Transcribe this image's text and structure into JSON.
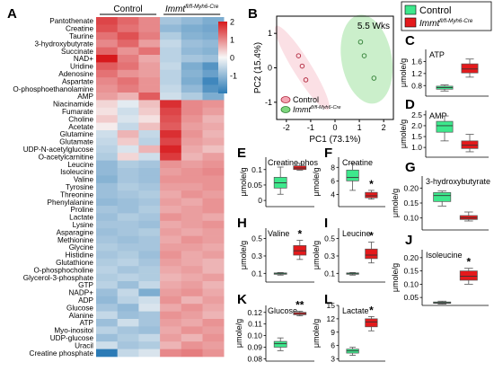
{
  "panel_letters": [
    "A",
    "B",
    "C",
    "D",
    "E",
    "F",
    "G",
    "H",
    "I",
    "J",
    "K",
    "L"
  ],
  "heatmap": {
    "group_control": "Control",
    "group_mutant": "Immt",
    "group_mutant_sup": "fl/fl-Myh6-Cre",
    "colorbar_ticks": [
      "2",
      "1",
      "0",
      "-1"
    ],
    "colors": {
      "high": "#d7191c",
      "mid": "#f7f7f7",
      "low": "#2c7bb6"
    }
  },
  "chart_data": [
    {
      "type": "heatmap",
      "panel": "A",
      "columns": [
        "Control",
        "Control",
        "Control",
        "Immt",
        "Immt",
        "Immt"
      ],
      "rows": [
        "Pantothenate",
        "Creatine",
        "Taurine",
        "3-hydroxybutyrate",
        "Succinate",
        "NAD+",
        "Uridine",
        "Adenosine",
        "Aspartate",
        "O-phosphoethanolamine",
        "AMP",
        "Niacinamide",
        "Fumarate",
        "Choline",
        "Acetate",
        "Glutamine",
        "Glutamate",
        "UDP-N-acetylglucose",
        "O-acetylcarnitine",
        "Leucine",
        "Isoleucine",
        "Valine",
        "Tyrosine",
        "Threonine",
        "Phenylalanine",
        "Proline",
        "Lactate",
        "Lysine",
        "Asparagine",
        "Methionine",
        "Glycine",
        "Histidine",
        "Glutathione",
        "O-phosphocholine",
        "Glycerol-3-phosphate",
        "GTP",
        "NADP+",
        "ADP",
        "Glucose",
        "Alanine",
        "ATP",
        "Myo-inositol",
        "UDP-glucose",
        "Uracil",
        "Creatine phosphate"
      ],
      "values": [
        [
          1.6,
          1.3,
          1.0,
          -0.8,
          -1.0,
          -1.2
        ],
        [
          1.5,
          1.2,
          1.0,
          -1.0,
          -1.2,
          -1.3
        ],
        [
          1.2,
          1.5,
          1.1,
          -0.7,
          -1.1,
          -1.2
        ],
        [
          1.0,
          1.3,
          0.8,
          -0.5,
          -0.9,
          -1.0
        ],
        [
          1.3,
          0.9,
          1.2,
          -0.6,
          -1.0,
          -1.1
        ],
        [
          2.0,
          1.1,
          0.7,
          -0.6,
          -0.8,
          -0.9
        ],
        [
          1.4,
          1.2,
          0.8,
          -0.5,
          -1.2,
          -1.6
        ],
        [
          1.2,
          0.9,
          0.8,
          -0.6,
          -1.1,
          -1.4
        ],
        [
          1.0,
          1.2,
          0.9,
          -0.6,
          -1.2,
          -1.8
        ],
        [
          0.9,
          1.1,
          0.9,
          -0.5,
          -1.0,
          -1.6
        ],
        [
          0.8,
          0.6,
          1.4,
          -0.4,
          -0.7,
          -1.2
        ],
        [
          0.3,
          -0.2,
          0.5,
          1.8,
          1.0,
          0.9
        ],
        [
          0.2,
          -0.4,
          0.4,
          1.6,
          1.0,
          0.8
        ],
        [
          0.4,
          -0.3,
          0.2,
          1.5,
          0.9,
          0.6
        ],
        [
          0.1,
          -0.5,
          0.5,
          1.4,
          0.8,
          0.7
        ],
        [
          -0.4,
          0.6,
          -0.5,
          1.8,
          0.9,
          0.6
        ],
        [
          -0.5,
          0.4,
          -0.6,
          1.6,
          0.8,
          0.7
        ],
        [
          -0.6,
          -0.3,
          0.6,
          1.9,
          0.7,
          0.5
        ],
        [
          -0.7,
          0.3,
          -0.4,
          1.7,
          0.6,
          0.8
        ],
        [
          -1.0,
          -0.7,
          -0.8,
          0.9,
          0.8,
          0.9
        ],
        [
          -1.0,
          -0.8,
          -0.9,
          0.8,
          0.9,
          1.0
        ],
        [
          -1.1,
          -0.8,
          -0.9,
          0.9,
          0.9,
          0.9
        ],
        [
          -0.9,
          -0.7,
          -0.8,
          0.8,
          0.8,
          0.9
        ],
        [
          -0.9,
          -0.8,
          -0.7,
          0.7,
          0.9,
          0.8
        ],
        [
          -1.0,
          -0.9,
          -0.8,
          0.8,
          0.7,
          0.9
        ],
        [
          -0.8,
          -0.9,
          -0.7,
          0.7,
          0.8,
          0.9
        ],
        [
          -0.9,
          -0.7,
          -0.8,
          0.9,
          0.8,
          0.7
        ],
        [
          -0.8,
          -0.8,
          -0.9,
          0.7,
          0.8,
          0.9
        ],
        [
          -0.9,
          -0.8,
          -0.7,
          0.8,
          0.7,
          0.8
        ],
        [
          -0.8,
          -0.9,
          -0.8,
          0.7,
          0.9,
          0.8
        ],
        [
          -0.7,
          -0.8,
          -0.8,
          0.8,
          0.8,
          0.7
        ],
        [
          -0.8,
          -0.7,
          -0.9,
          0.9,
          0.7,
          0.8
        ],
        [
          -0.7,
          -0.6,
          -0.8,
          0.8,
          0.7,
          0.6
        ],
        [
          -0.6,
          -0.8,
          -0.7,
          0.7,
          0.8,
          0.6
        ],
        [
          -0.7,
          -0.6,
          -0.7,
          0.6,
          0.7,
          0.8
        ],
        [
          -0.6,
          -0.9,
          -0.5,
          0.7,
          0.8,
          0.6
        ],
        [
          -0.9,
          -0.5,
          -1.2,
          0.8,
          0.9,
          0.7
        ],
        [
          -1.0,
          -0.6,
          -0.4,
          0.9,
          0.6,
          0.8
        ],
        [
          -0.8,
          -1.0,
          -0.3,
          0.7,
          0.9,
          0.7
        ],
        [
          -0.5,
          -0.9,
          -0.8,
          0.9,
          0.8,
          0.6
        ],
        [
          -0.9,
          -0.4,
          -0.8,
          0.8,
          0.7,
          0.9
        ],
        [
          -0.6,
          -0.8,
          -0.9,
          0.7,
          0.9,
          0.8
        ],
        [
          -0.9,
          -0.7,
          -0.5,
          0.8,
          0.6,
          0.9
        ],
        [
          -0.4,
          -0.8,
          -0.7,
          0.6,
          0.9,
          0.8
        ],
        [
          -2.0,
          -0.5,
          -0.3,
          1.0,
          1.1,
          0.9
        ]
      ]
    },
    {
      "type": "scatter",
      "panel": "B",
      "title": "5.5 Wks",
      "xlabel": "PC1 (73.1%)",
      "ylabel": "PC2 (15.4%)",
      "xlim": [
        -2.4,
        2.4
      ],
      "ylim": [
        -1.5,
        1.5
      ],
      "xticks": [
        -2,
        -1,
        0,
        1,
        2
      ],
      "yticks": [
        -1,
        0,
        1
      ],
      "legend_position": "bottom-left",
      "series": [
        {
          "name": "Control",
          "color": "#f4a6b4",
          "x": [
            -1.5,
            -1.35,
            -1.2
          ],
          "y": [
            0.35,
            0.05,
            -0.35
          ]
        },
        {
          "name": "Immt",
          "name_sup": "fl/fl-Myh6-Cre",
          "color": "#7ed67e",
          "x": [
            1.05,
            1.2,
            1.6
          ],
          "y": [
            0.75,
            0.35,
            -0.3
          ]
        }
      ]
    },
    {
      "type": "box",
      "legend": [
        {
          "name": "Control",
          "color": "#3de88c"
        },
        {
          "name": "Immt",
          "name_sup": "fl/fl-Myh6-Cre",
          "color": "#e41a1c"
        }
      ],
      "ylabel": "μmole/g",
      "panels": [
        {
          "panel": "C",
          "title": "ATP",
          "ylim": [
            0.45,
            2.0
          ],
          "yticks": [
            "0.8",
            "1.2",
            "1.6"
          ],
          "tickvals": [
            0.8,
            1.2,
            1.6
          ],
          "sig": "",
          "control": {
            "min": 0.62,
            "q1": 0.68,
            "median": 0.73,
            "q3": 0.78,
            "max": 0.82
          },
          "mutant": {
            "min": 1.08,
            "q1": 1.22,
            "median": 1.35,
            "q3": 1.52,
            "max": 1.68
          }
        },
        {
          "panel": "D",
          "title": "AMP",
          "ylim": [
            0.55,
            2.7
          ],
          "yticks": [
            "1.0",
            "1.5",
            "2.0",
            "2.5"
          ],
          "tickvals": [
            1.0,
            1.5,
            2.0,
            2.5
          ],
          "sig": "",
          "control": {
            "min": 1.3,
            "q1": 1.7,
            "median": 2.0,
            "q3": 2.2,
            "max": 2.45
          },
          "mutant": {
            "min": 0.8,
            "q1": 0.95,
            "median": 1.1,
            "q3": 1.3,
            "max": 1.6
          }
        },
        {
          "panel": "E",
          "title": "Creatine phos",
          "ylim": [
            -0.02,
            0.14
          ],
          "yticks": [
            "0",
            "0.05",
            "0.1"
          ],
          "tickvals": [
            0,
            0.05,
            0.1
          ],
          "sig": "",
          "control": {
            "min": 0.02,
            "q1": 0.04,
            "median": 0.057,
            "q3": 0.075,
            "max": 0.108
          },
          "mutant": {
            "min": 0.098,
            "q1": 0.1,
            "median": 0.105,
            "q3": 0.112,
            "max": 0.12
          }
        },
        {
          "panel": "F",
          "title": "Creatine",
          "ylim": [
            2.2,
            9.5
          ],
          "yticks": [
            "4",
            "6",
            "8"
          ],
          "tickvals": [
            4,
            6,
            8
          ],
          "sig": "*",
          "control": {
            "min": 4.6,
            "q1": 6.0,
            "median": 6.5,
            "q3": 7.6,
            "max": 8.6
          },
          "mutant": {
            "min": 3.3,
            "q1": 3.5,
            "median": 3.8,
            "q3": 4.3,
            "max": 4.6
          }
        },
        {
          "panel": "G",
          "title": "3-hydroxybutyrate",
          "ylim": [
            0.06,
            0.24
          ],
          "yticks": [
            "0.10",
            "0.15",
            "0.20"
          ],
          "tickvals": [
            0.1,
            0.15,
            0.2
          ],
          "sig": "",
          "control": {
            "min": 0.14,
            "q1": 0.155,
            "median": 0.175,
            "q3": 0.185,
            "max": 0.19
          },
          "mutant": {
            "min": 0.09,
            "q1": 0.095,
            "median": 0.1,
            "q3": 0.108,
            "max": 0.12
          }
        },
        {
          "panel": "H",
          "title": "Valine",
          "ylim": [
            0.0,
            0.62
          ],
          "yticks": [
            "0.1",
            "0.3",
            "0.5"
          ],
          "tickvals": [
            0.1,
            0.3,
            0.5
          ],
          "sig": "*",
          "control": {
            "min": 0.08,
            "q1": 0.09,
            "median": 0.1,
            "q3": 0.105,
            "max": 0.11
          },
          "mutant": {
            "min": 0.26,
            "q1": 0.31,
            "median": 0.36,
            "q3": 0.42,
            "max": 0.48
          }
        },
        {
          "panel": "I",
          "title": "Leucine",
          "ylim": [
            0.0,
            0.62
          ],
          "yticks": [
            "0.1",
            "0.3",
            "0.5"
          ],
          "tickvals": [
            0.1,
            0.3,
            0.5
          ],
          "sig": "*",
          "control": {
            "min": 0.08,
            "q1": 0.09,
            "median": 0.1,
            "q3": 0.105,
            "max": 0.11
          },
          "mutant": {
            "min": 0.22,
            "q1": 0.27,
            "median": 0.31,
            "q3": 0.38,
            "max": 0.46
          }
        },
        {
          "panel": "J",
          "title": "Isoleucine",
          "ylim": [
            0.02,
            0.23
          ],
          "yticks": [
            "0.05",
            "0.10",
            "0.15",
            "0.20"
          ],
          "tickvals": [
            0.05,
            0.1,
            0.15,
            0.2
          ],
          "sig": "*",
          "control": {
            "min": 0.025,
            "q1": 0.028,
            "median": 0.03,
            "q3": 0.033,
            "max": 0.036
          },
          "mutant": {
            "min": 0.1,
            "q1": 0.115,
            "median": 0.13,
            "q3": 0.15,
            "max": 0.16
          }
        },
        {
          "panel": "K",
          "title": "Glucose",
          "ylim": [
            0.078,
            0.126
          ],
          "yticks": [
            "0.08",
            "0.09",
            "0.10",
            "0.11",
            "0.12"
          ],
          "tickvals": [
            0.08,
            0.09,
            0.1,
            0.11,
            0.12
          ],
          "sig": "**",
          "control": {
            "min": 0.087,
            "q1": 0.09,
            "median": 0.093,
            "q3": 0.095,
            "max": 0.098
          },
          "mutant": {
            "min": 0.117,
            "q1": 0.118,
            "median": 0.119,
            "q3": 0.12,
            "max": 0.121
          }
        },
        {
          "panel": "L",
          "title": "Lactate",
          "ylim": [
            2.5,
            15.0
          ],
          "yticks": [
            "3",
            "6",
            "9",
            "12",
            "15"
          ],
          "tickvals": [
            3,
            6,
            9,
            12,
            15
          ],
          "sig": "*",
          "control": {
            "min": 3.8,
            "q1": 4.3,
            "median": 4.8,
            "q3": 5.2,
            "max": 5.6
          },
          "mutant": {
            "min": 9.3,
            "q1": 10.2,
            "median": 11.3,
            "q3": 12.0,
            "max": 12.5
          }
        }
      ]
    }
  ]
}
